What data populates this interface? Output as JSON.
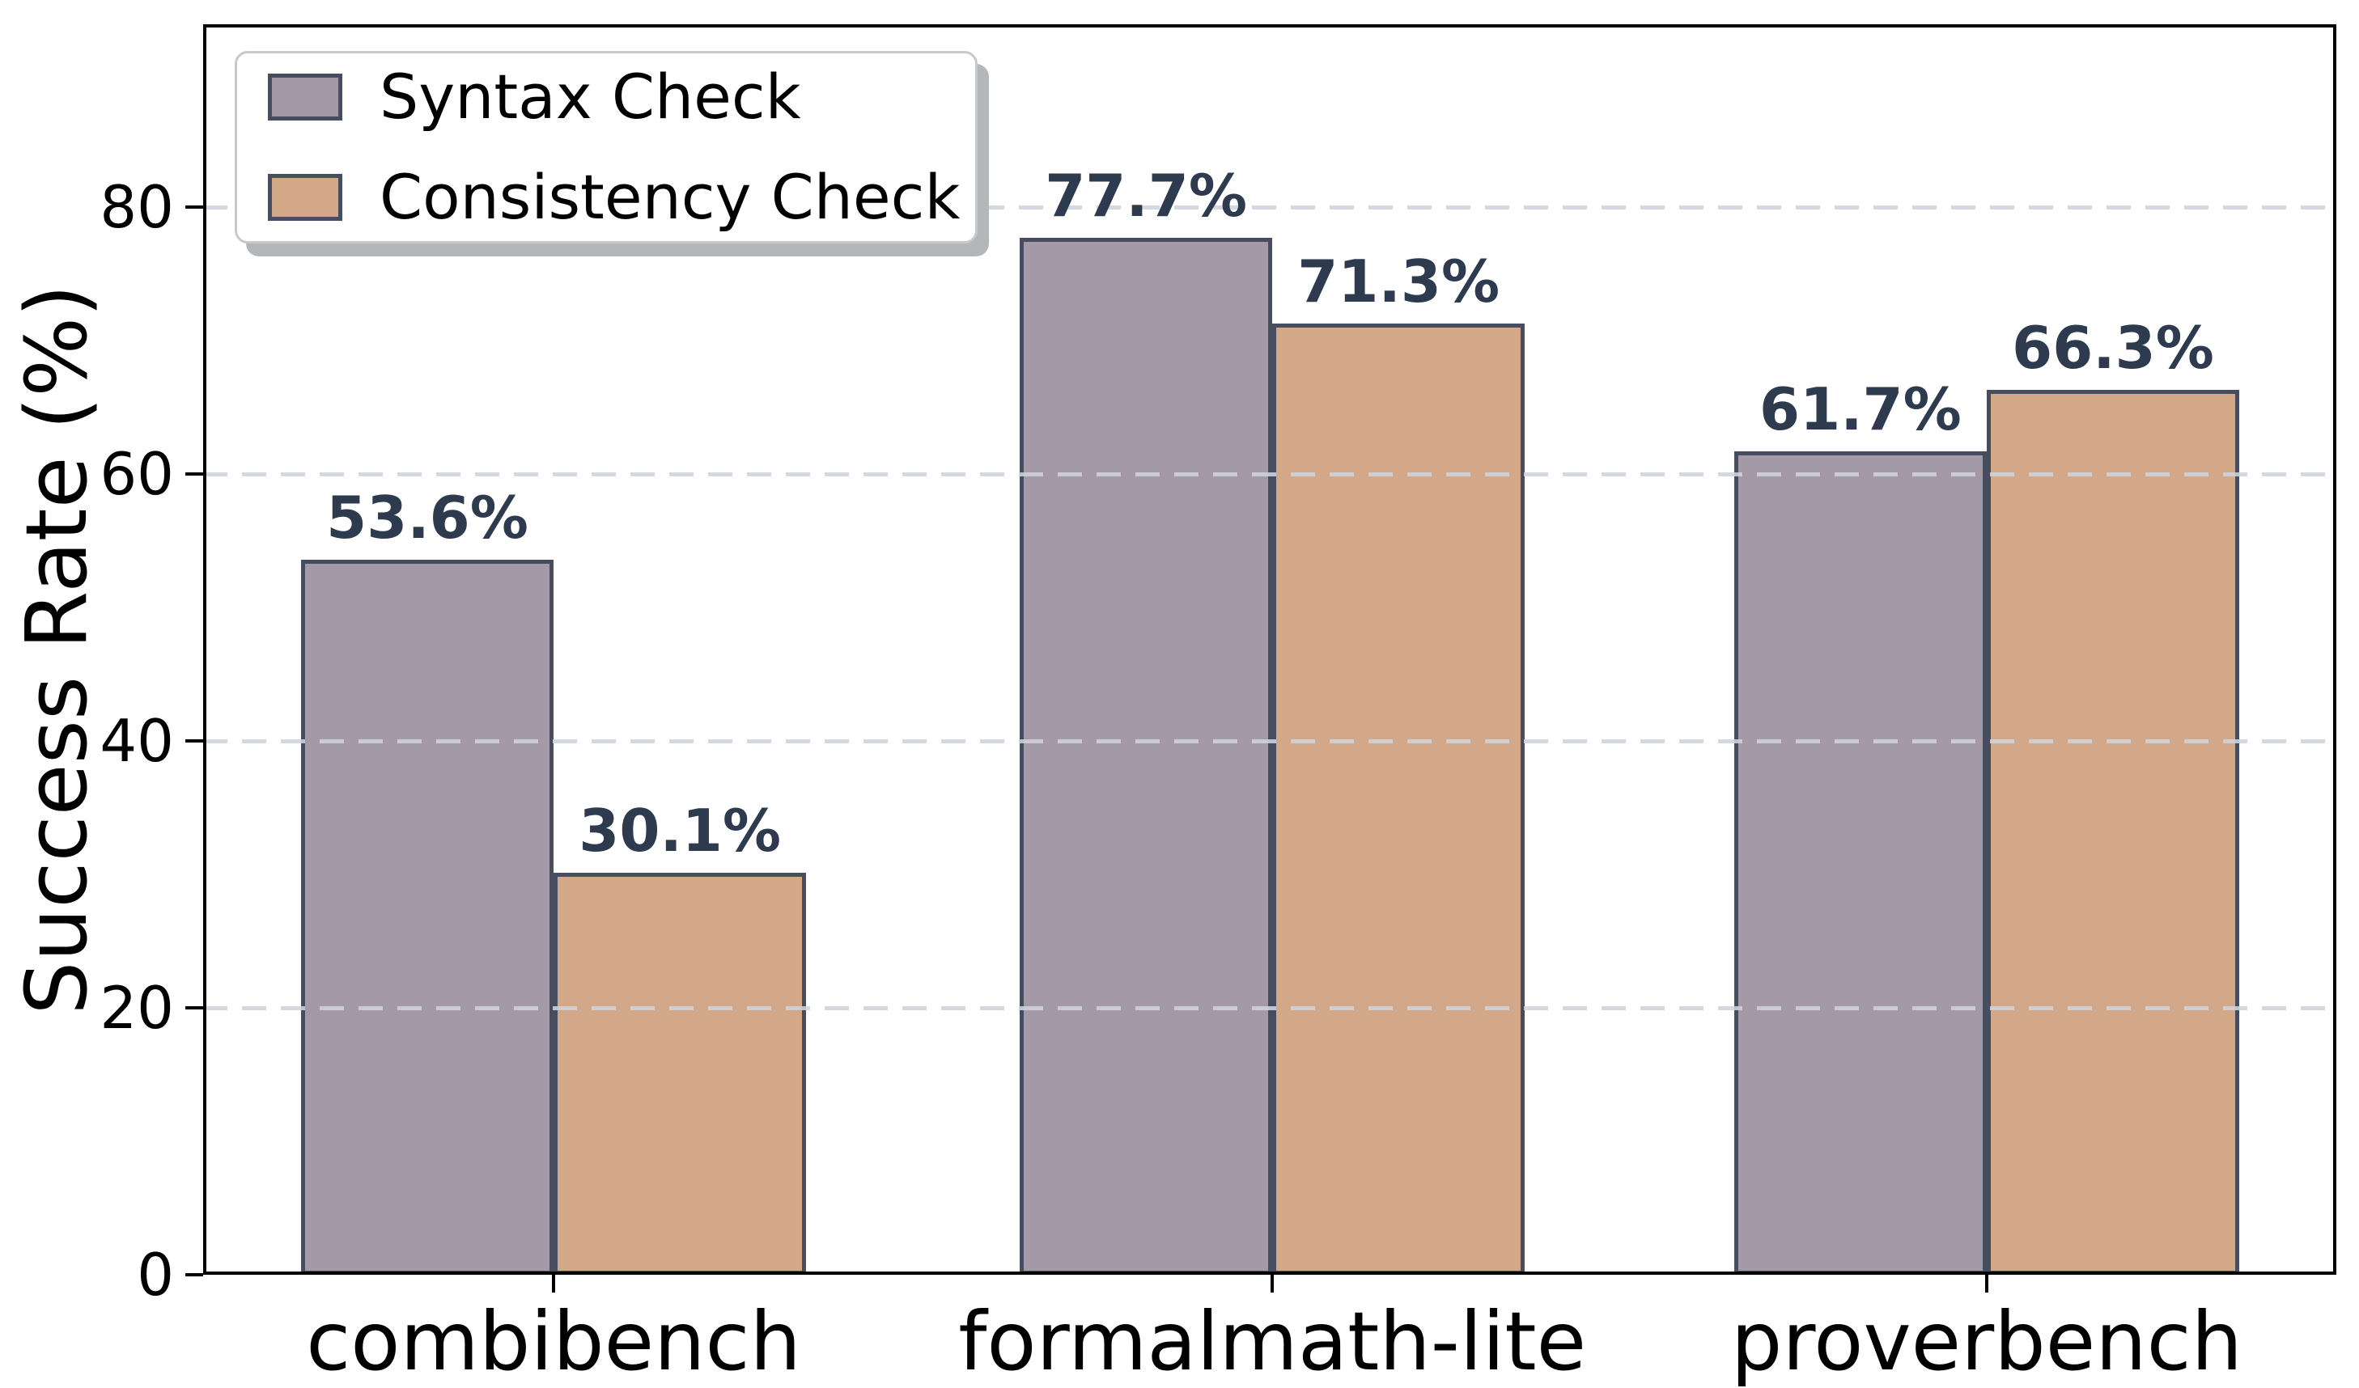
{
  "chart_data": {
    "type": "bar",
    "title": "",
    "ylabel": "Success Rate (%)",
    "xlabel": "",
    "categories": [
      "combibench",
      "formalmath-lite",
      "proverbench"
    ],
    "series": [
      {
        "name": "Syntax Check",
        "color": "#a49aa7",
        "values": [
          53.6,
          77.7,
          61.7
        ],
        "labels": [
          "53.6%",
          "77.7%",
          "61.7%"
        ]
      },
      {
        "name": "Consistency Check",
        "color": "#d3a888",
        "values": [
          30.1,
          71.3,
          66.3
        ],
        "labels": [
          "30.1%",
          "71.3%",
          "66.3%"
        ]
      }
    ],
    "yticks": [
      0,
      20,
      40,
      60,
      80
    ],
    "ylim": [
      0,
      93.7
    ],
    "grid": {
      "axis": "y",
      "style": "dashed",
      "color": "#d4d7de",
      "drawn_over_bars": true
    },
    "legend": {
      "position": "upper-left",
      "entries": [
        "Syntax Check",
        "Consistency Check"
      ]
    },
    "colors": {
      "bar_edge": "#454d5e",
      "value_label": "#2e3a4e",
      "tick_label": "#000000",
      "grid": "#d4d7de",
      "frame": "#000000"
    }
  }
}
